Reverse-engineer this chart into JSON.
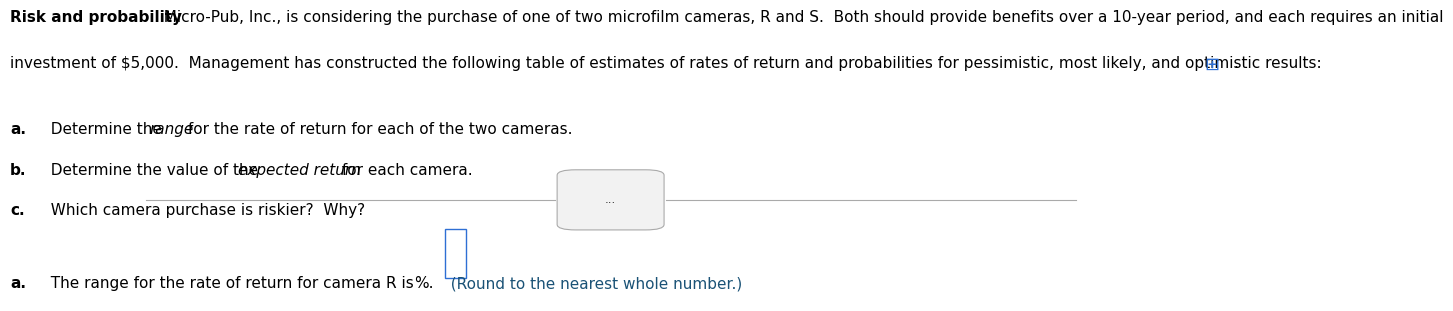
{
  "bg_color": "#ffffff",
  "line1_bold": "Risk and probability",
  "line1_normal": "  Micro-Pub, Inc., is considering the purchase of one of two microfilm cameras, R and S.  Both should provide benefits over a 10-year period, and each requires an initial",
  "line2": "investment of $5,000.  Management has constructed the following table of estimates of rates of return and probabilities for pessimistic, most likely, and optimistic results: ",
  "items_data": [
    [
      "a.",
      "  Determine the ",
      "range",
      " for the rate of return for each of the two cameras."
    ],
    [
      "b.",
      "  Determine the value of the ",
      "expected return",
      " for each camera."
    ],
    [
      "c.",
      "  Which camera purchase is riskier?  Why?",
      "",
      ""
    ]
  ],
  "divider_dots": "...",
  "ans_label": "a.",
  "ans_text": "  The range for the rate of return for camera R is",
  "ans_pct": "%.",
  "ans_suffix": "  (Round to the nearest whole number.)",
  "ans_suffix_color": "#1a5276",
  "font_size_main": 11.0,
  "icon_color": "#2e6fd4",
  "divider_color": "#aaaaaa",
  "box_edge_color": "#2e6fd4"
}
